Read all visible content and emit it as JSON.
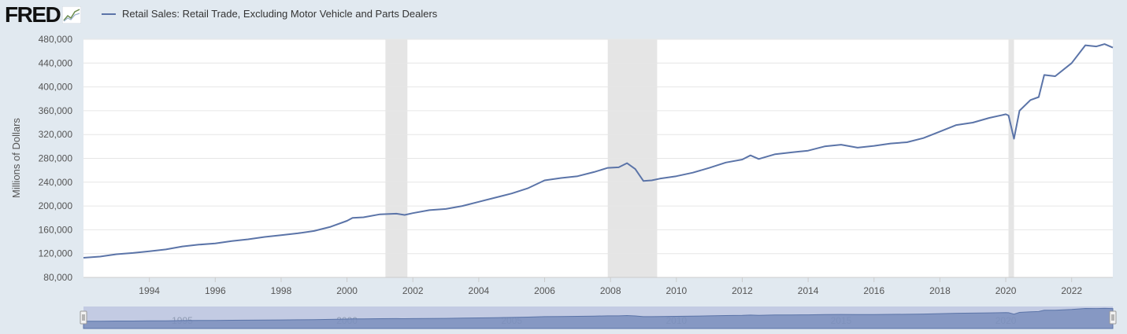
{
  "brand": {
    "name": "FRED"
  },
  "chart_data": {
    "type": "line",
    "title": "",
    "xlabel": "",
    "ylabel": "Millions of Dollars",
    "ylim": [
      80000,
      480000
    ],
    "yticks": [
      80000,
      120000,
      160000,
      200000,
      240000,
      280000,
      320000,
      360000,
      400000,
      440000,
      480000
    ],
    "ytick_labels": [
      "80,000",
      "120,000",
      "160,000",
      "200,000",
      "240,000",
      "280,000",
      "320,000",
      "360,000",
      "400,000",
      "440,000",
      "480,000"
    ],
    "xlim": [
      "1992-01",
      "2023-04"
    ],
    "xticks": [
      "1994",
      "1996",
      "1998",
      "2000",
      "2002",
      "2004",
      "2006",
      "2008",
      "2010",
      "2012",
      "2014",
      "2016",
      "2018",
      "2020",
      "2022"
    ],
    "grid": true,
    "legend_position": "top-left",
    "recessions": [
      {
        "start": "2001-03",
        "end": "2001-11"
      },
      {
        "start": "2007-12",
        "end": "2009-06"
      },
      {
        "start": "2020-02",
        "end": "2020-04"
      }
    ],
    "series": [
      {
        "name": "Retail Sales: Retail Trade, Excluding Motor Vehicle and Parts Dealers",
        "color": "#5b74a8",
        "points": [
          [
            "1992-01",
            113000
          ],
          [
            "1992-07",
            115000
          ],
          [
            "1993-01",
            119000
          ],
          [
            "1993-07",
            121000
          ],
          [
            "1994-01",
            124000
          ],
          [
            "1994-07",
            127000
          ],
          [
            "1995-01",
            132000
          ],
          [
            "1995-07",
            135000
          ],
          [
            "1996-01",
            137000
          ],
          [
            "1996-07",
            141000
          ],
          [
            "1997-01",
            144000
          ],
          [
            "1997-07",
            148000
          ],
          [
            "1998-01",
            151000
          ],
          [
            "1998-07",
            154000
          ],
          [
            "1999-01",
            158000
          ],
          [
            "1999-07",
            165000
          ],
          [
            "2000-01",
            175000
          ],
          [
            "2000-03",
            180000
          ],
          [
            "2000-07",
            181000
          ],
          [
            "2001-01",
            186000
          ],
          [
            "2001-07",
            187000
          ],
          [
            "2001-10",
            185000
          ],
          [
            "2002-01",
            188000
          ],
          [
            "2002-07",
            193000
          ],
          [
            "2003-01",
            195000
          ],
          [
            "2003-07",
            200000
          ],
          [
            "2004-01",
            207000
          ],
          [
            "2004-07",
            214000
          ],
          [
            "2005-01",
            221000
          ],
          [
            "2005-07",
            230000
          ],
          [
            "2006-01",
            243000
          ],
          [
            "2006-07",
            247000
          ],
          [
            "2007-01",
            250000
          ],
          [
            "2007-07",
            257000
          ],
          [
            "2007-12",
            264000
          ],
          [
            "2008-04",
            265000
          ],
          [
            "2008-07",
            272000
          ],
          [
            "2008-10",
            262000
          ],
          [
            "2009-01",
            242000
          ],
          [
            "2009-04",
            243000
          ],
          [
            "2009-07",
            246000
          ],
          [
            "2010-01",
            250000
          ],
          [
            "2010-07",
            256000
          ],
          [
            "2011-01",
            264000
          ],
          [
            "2011-07",
            273000
          ],
          [
            "2012-01",
            278000
          ],
          [
            "2012-04",
            285000
          ],
          [
            "2012-07",
            279000
          ],
          [
            "2013-01",
            287000
          ],
          [
            "2013-07",
            290000
          ],
          [
            "2014-01",
            293000
          ],
          [
            "2014-07",
            300000
          ],
          [
            "2015-01",
            303000
          ],
          [
            "2015-07",
            298000
          ],
          [
            "2016-01",
            301000
          ],
          [
            "2016-07",
            305000
          ],
          [
            "2017-01",
            307000
          ],
          [
            "2017-07",
            314000
          ],
          [
            "2018-01",
            325000
          ],
          [
            "2018-07",
            336000
          ],
          [
            "2019-01",
            340000
          ],
          [
            "2019-07",
            348000
          ],
          [
            "2020-01",
            354000
          ],
          [
            "2020-02",
            352000
          ],
          [
            "2020-04",
            313000
          ],
          [
            "2020-06",
            360000
          ],
          [
            "2020-10",
            378000
          ],
          [
            "2021-01",
            383000
          ],
          [
            "2021-03",
            420000
          ],
          [
            "2021-07",
            418000
          ],
          [
            "2022-01",
            440000
          ],
          [
            "2022-06",
            470000
          ],
          [
            "2022-10",
            468000
          ],
          [
            "2023-01",
            472000
          ],
          [
            "2023-04",
            466000
          ]
        ]
      }
    ]
  },
  "navigator": {
    "labels": [
      "1995",
      "2000",
      "2005",
      "2010",
      "2015",
      "2020"
    ]
  }
}
